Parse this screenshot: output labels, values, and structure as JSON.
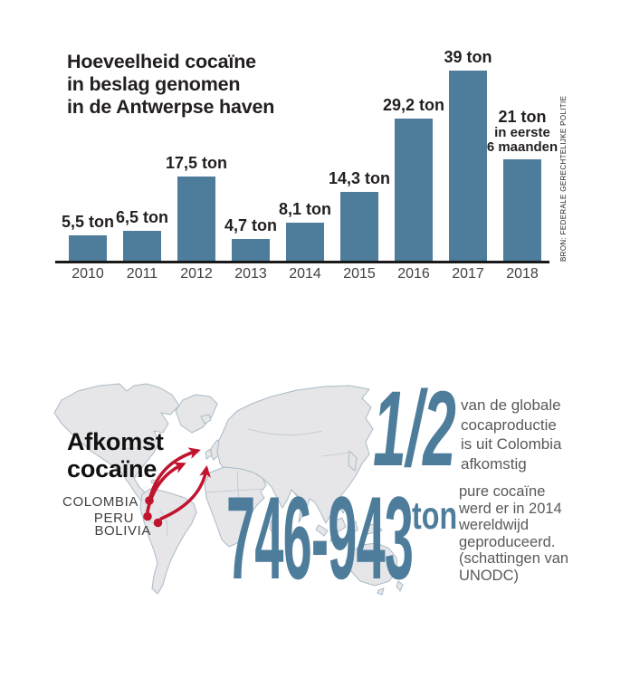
{
  "header": {
    "title": "Hoeveelheid cocaïne\nin beslag genomen\nin de Antwerpse haven"
  },
  "source_note": "BRON: FEDERALE GERECHTELIJKE POLITIE",
  "chart_data": {
    "type": "bar",
    "title": "Hoeveelheid cocaïne in beslag genomen in de Antwerpse haven",
    "unit": "ton",
    "categories": [
      "2010",
      "2011",
      "2012",
      "2013",
      "2014",
      "2015",
      "2016",
      "2017",
      "2018"
    ],
    "values": [
      5.5,
      6.5,
      17.5,
      4.7,
      8.1,
      14.3,
      29.2,
      39,
      21
    ],
    "bar_labels": [
      [
        "5,5 ton"
      ],
      [
        "6,5 ton"
      ],
      [
        "17,5 ton"
      ],
      [
        "4,7 ton"
      ],
      [
        "8,1 ton"
      ],
      [
        "14,3 ton"
      ],
      [
        "29,2 ton"
      ],
      [
        "39 ton"
      ],
      [
        "21 ton",
        "in eerste",
        "6 maanden"
      ]
    ],
    "ylim": [
      0,
      39
    ],
    "grid": false,
    "legend_position": "none",
    "note": "2018 = in eerste 6 maanden"
  },
  "map_section": {
    "heading": "Afkomst\ncocaïne",
    "origin_labels": [
      "COLOMBIA",
      "PERU",
      "BOLIVIA"
    ],
    "stats": {
      "half": {
        "value": "1/2",
        "text": "van de globale\ncocaproductie\nis uit Colombia\nafkomstig"
      },
      "production": {
        "value": "746-943",
        "unit": "ton",
        "text": "pure cocaïne\nwerd er in 2014\nwereldwijd\ngeproduceerd.\n(schattingen van\nUNODC)"
      }
    }
  },
  "colors": {
    "bar_blue": "#4e7d9c",
    "stat_blue": "#4e7d9c",
    "arrow_red": "#c1142f",
    "land": "#e6e6e8",
    "land_border": "#a9bac6",
    "text_dark": "#231f20",
    "text_gray": "#58595b"
  }
}
